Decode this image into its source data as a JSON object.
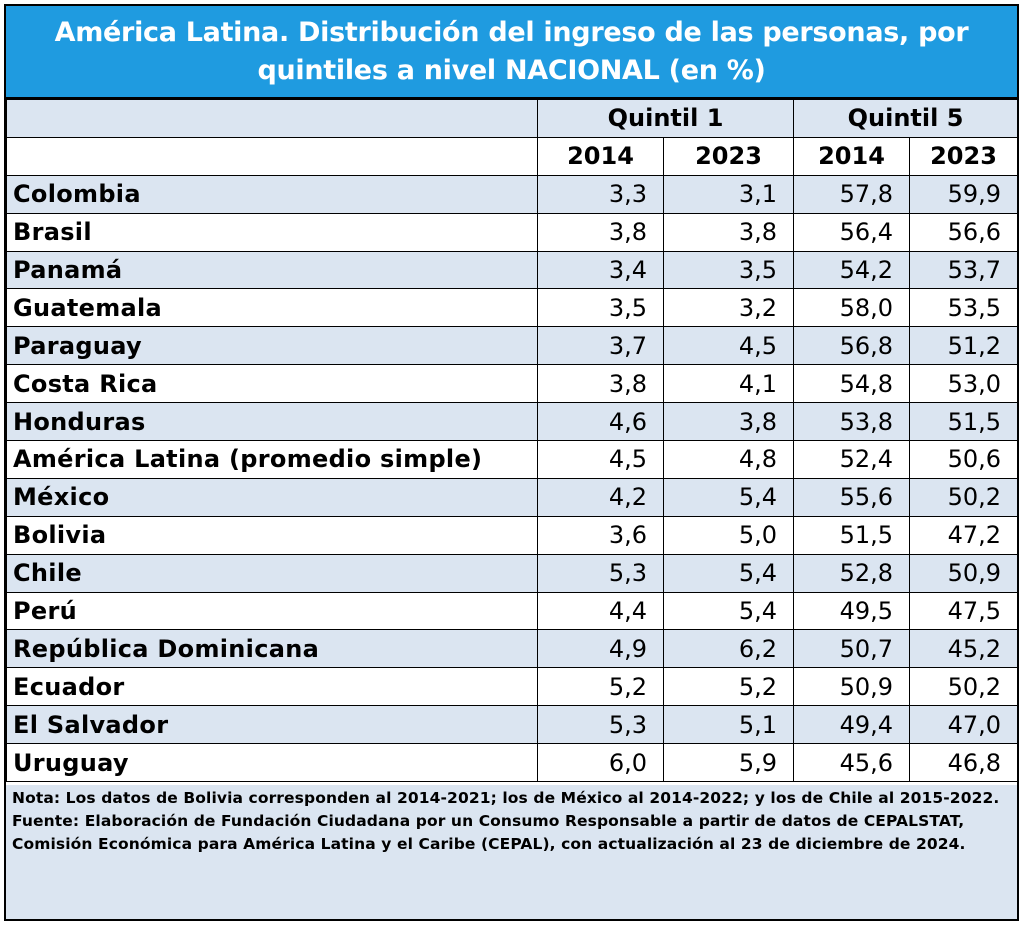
{
  "title": "América Latina. Distribución del ingreso de las personas, por quintiles a nivel NACIONAL (en %)",
  "colors": {
    "header_bg": "#1f9be0",
    "band": "#dbe5f1"
  },
  "headers": {
    "group1": "Quintil 1",
    "group2": "Quintil 5",
    "years": [
      "2014",
      "2023",
      "2014",
      "2023"
    ]
  },
  "chart_data": {
    "type": "table",
    "title": "América Latina. Distribución del ingreso de las personas, por quintiles a nivel NACIONAL (en %)",
    "columns": [
      "Quintil 1 2014",
      "Quintil 1 2023",
      "Quintil 5 2014",
      "Quintil 5 2023"
    ],
    "rows": [
      {
        "country": "Colombia",
        "values": [
          "3,3",
          "3,1",
          "57,8",
          "59,9"
        ]
      },
      {
        "country": "Brasil",
        "values": [
          "3,8",
          "3,8",
          "56,4",
          "56,6"
        ]
      },
      {
        "country": "Panamá",
        "values": [
          "3,4",
          "3,5",
          "54,2",
          "53,7"
        ]
      },
      {
        "country": "Guatemala",
        "values": [
          "3,5",
          "3,2",
          "58,0",
          "53,5"
        ]
      },
      {
        "country": "Paraguay",
        "values": [
          "3,7",
          "4,5",
          "56,8",
          "51,2"
        ]
      },
      {
        "country": "Costa Rica",
        "values": [
          "3,8",
          "4,1",
          "54,8",
          "53,0"
        ]
      },
      {
        "country": "Honduras",
        "values": [
          "4,6",
          "3,8",
          "53,8",
          "51,5"
        ]
      },
      {
        "country": "América Latina (promedio simple)",
        "values": [
          "4,5",
          "4,8",
          "52,4",
          "50,6"
        ]
      },
      {
        "country": "México",
        "values": [
          "4,2",
          "5,4",
          "55,6",
          "50,2"
        ]
      },
      {
        "country": "Bolivia",
        "values": [
          "3,6",
          "5,0",
          "51,5",
          "47,2"
        ]
      },
      {
        "country": "Chile",
        "values": [
          "5,3",
          "5,4",
          "52,8",
          "50,9"
        ]
      },
      {
        "country": "Perú",
        "values": [
          "4,4",
          "5,4",
          "49,5",
          "47,5"
        ]
      },
      {
        "country": "República Dominicana",
        "values": [
          "4,9",
          "6,2",
          "50,7",
          "45,2"
        ]
      },
      {
        "country": "Ecuador",
        "values": [
          "5,2",
          "5,2",
          "50,9",
          "50,2"
        ]
      },
      {
        "country": "El Salvador",
        "values": [
          "5,3",
          "5,1",
          "49,4",
          "47,0"
        ]
      },
      {
        "country": "Uruguay",
        "values": [
          "6,0",
          "5,9",
          "45,6",
          "46,8"
        ]
      }
    ]
  },
  "notes": {
    "nota": "Nota: Los datos de Bolivia corresponden al 2014-2021; los de México al 2014-2022; y los de Chile al 2015-2022.",
    "fuente": "Fuente: Elaboración de Fundación Ciudadana por un Consumo Responsable a partir de datos de CEPALSTAT, Comisión Económica para América Latina y el Caribe (CEPAL), con actualización al 23 de diciembre de 2024."
  }
}
